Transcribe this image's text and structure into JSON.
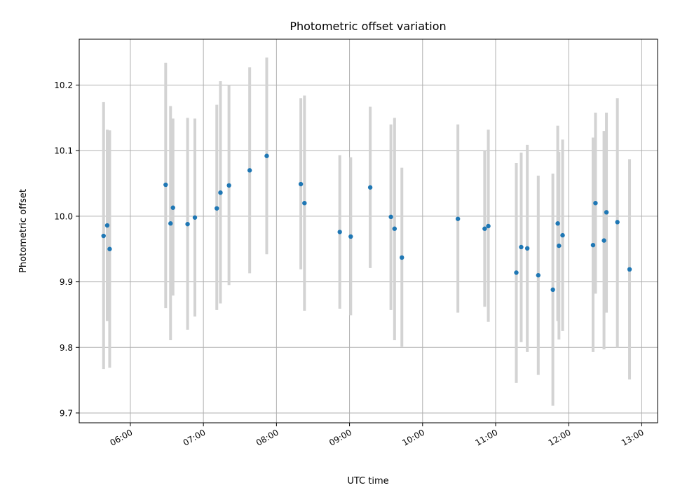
{
  "chart_data": {
    "type": "scatter",
    "title": "Photometric offset variation",
    "xlabel": "UTC time",
    "ylabel": "Photometric offset",
    "x_unit": "UTC time (HH:MM)",
    "xlim": [
      "05:18",
      "13:13"
    ],
    "ylim": [
      9.685,
      10.27
    ],
    "grid": true,
    "x_ticks": [
      "06:00",
      "07:00",
      "08:00",
      "09:00",
      "10:00",
      "11:00",
      "12:00",
      "13:00"
    ],
    "y_ticks": [
      9.7,
      9.8,
      9.9,
      10.0,
      10.1,
      10.2
    ],
    "y_tick_labels": [
      "9.7",
      "9.8",
      "9.9",
      "10.0",
      "10.1",
      "10.2"
    ],
    "colors": {
      "marker": "#1f77b4",
      "errorbar": "#d3d3d3",
      "grid": "#b0b0b0"
    },
    "points": [
      {
        "x": "05:38",
        "y": 9.97,
        "ylow": 9.767,
        "yhigh": 10.174
      },
      {
        "x": "05:41",
        "y": 9.986,
        "ylow": 9.84,
        "yhigh": 10.132
      },
      {
        "x": "05:43",
        "y": 9.95,
        "ylow": 9.769,
        "yhigh": 10.131
      },
      {
        "x": "06:29",
        "y": 10.048,
        "ylow": 9.86,
        "yhigh": 10.234
      },
      {
        "x": "06:33",
        "y": 9.989,
        "ylow": 9.811,
        "yhigh": 10.168
      },
      {
        "x": "06:35",
        "y": 10.013,
        "ylow": 9.879,
        "yhigh": 10.149
      },
      {
        "x": "06:47",
        "y": 9.988,
        "ylow": 9.827,
        "yhigh": 10.15
      },
      {
        "x": "06:53",
        "y": 9.998,
        "ylow": 9.847,
        "yhigh": 10.149
      },
      {
        "x": "07:11",
        "y": 10.012,
        "ylow": 9.857,
        "yhigh": 10.17
      },
      {
        "x": "07:14",
        "y": 10.036,
        "ylow": 9.867,
        "yhigh": 10.206
      },
      {
        "x": "07:21",
        "y": 10.047,
        "ylow": 9.895,
        "yhigh": 10.2
      },
      {
        "x": "07:38",
        "y": 10.07,
        "ylow": 9.913,
        "yhigh": 10.227
      },
      {
        "x": "07:52",
        "y": 10.092,
        "ylow": 9.942,
        "yhigh": 10.242
      },
      {
        "x": "08:20",
        "y": 10.049,
        "ylow": 9.919,
        "yhigh": 10.18
      },
      {
        "x": "08:23",
        "y": 10.02,
        "ylow": 9.856,
        "yhigh": 10.184
      },
      {
        "x": "08:52",
        "y": 9.976,
        "ylow": 9.859,
        "yhigh": 10.093
      },
      {
        "x": "09:01",
        "y": 9.969,
        "ylow": 9.849,
        "yhigh": 10.09
      },
      {
        "x": "09:17",
        "y": 10.044,
        "ylow": 9.921,
        "yhigh": 10.167
      },
      {
        "x": "09:34",
        "y": 9.999,
        "ylow": 9.857,
        "yhigh": 10.14
      },
      {
        "x": "09:37",
        "y": 9.981,
        "ylow": 9.811,
        "yhigh": 10.15
      },
      {
        "x": "09:43",
        "y": 9.937,
        "ylow": 9.801,
        "yhigh": 10.074
      },
      {
        "x": "10:29",
        "y": 9.996,
        "ylow": 9.853,
        "yhigh": 10.14
      },
      {
        "x": "10:51",
        "y": 9.981,
        "ylow": 9.862,
        "yhigh": 10.1
      },
      {
        "x": "10:54",
        "y": 9.985,
        "ylow": 9.839,
        "yhigh": 10.132
      },
      {
        "x": "11:17",
        "y": 9.914,
        "ylow": 9.746,
        "yhigh": 10.081
      },
      {
        "x": "11:21",
        "y": 9.953,
        "ylow": 9.808,
        "yhigh": 10.097
      },
      {
        "x": "11:26",
        "y": 9.951,
        "ylow": 9.793,
        "yhigh": 10.109
      },
      {
        "x": "11:35",
        "y": 9.91,
        "ylow": 9.758,
        "yhigh": 10.062
      },
      {
        "x": "11:47",
        "y": 9.888,
        "ylow": 9.711,
        "yhigh": 10.065
      },
      {
        "x": "11:51",
        "y": 9.989,
        "ylow": 9.84,
        "yhigh": 10.138
      },
      {
        "x": "11:52",
        "y": 9.955,
        "ylow": 9.812,
        "yhigh": 10.098
      },
      {
        "x": "11:55",
        "y": 9.971,
        "ylow": 9.825,
        "yhigh": 10.117
      },
      {
        "x": "12:20",
        "y": 9.956,
        "ylow": 9.793,
        "yhigh": 10.12
      },
      {
        "x": "12:22",
        "y": 10.02,
        "ylow": 9.882,
        "yhigh": 10.158
      },
      {
        "x": "12:29",
        "y": 9.963,
        "ylow": 9.797,
        "yhigh": 10.13
      },
      {
        "x": "12:31",
        "y": 10.006,
        "ylow": 9.853,
        "yhigh": 10.158
      },
      {
        "x": "12:40",
        "y": 9.991,
        "ylow": 9.8,
        "yhigh": 10.18
      },
      {
        "x": "12:50",
        "y": 9.919,
        "ylow": 9.751,
        "yhigh": 10.087
      }
    ]
  }
}
